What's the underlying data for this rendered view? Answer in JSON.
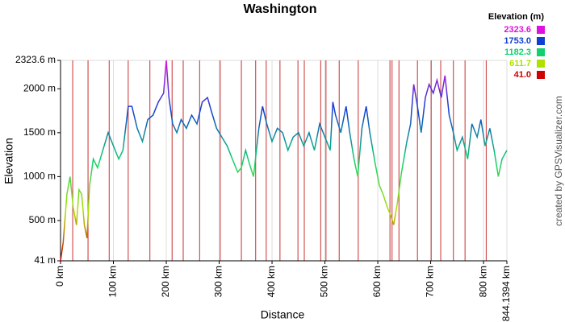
{
  "chart_data": {
    "type": "line",
    "title": "Washington",
    "x_label": "Distance",
    "y_label": "Elevation",
    "credit": "created by GPSVisualizer.com",
    "legend_title": "Elevation (m)",
    "legend": [
      {
        "value": 2323.6,
        "color": "#e010e0"
      },
      {
        "value": 1753,
        "label": "1753.0",
        "color": "#1040d0"
      },
      {
        "value": 1182.3,
        "color": "#10d070"
      },
      {
        "value": 611.7,
        "color": "#b0e000"
      },
      {
        "value": 41,
        "label": "41.0",
        "color": "#d00000"
      }
    ],
    "xlim": [
      0,
      844.1394
    ],
    "ylim": [
      41,
      2323.6
    ],
    "xticks": [
      {
        "value": 0,
        "label": "0 km"
      },
      {
        "value": 100,
        "label": "100 km"
      },
      {
        "value": 200,
        "label": "200 km"
      },
      {
        "value": 300,
        "label": "300 km"
      },
      {
        "value": 400,
        "label": "400 km"
      },
      {
        "value": 500,
        "label": "500 km"
      },
      {
        "value": 600,
        "label": "600 km"
      },
      {
        "value": 700,
        "label": "700 km"
      },
      {
        "value": 800,
        "label": "800 km"
      },
      {
        "value": 844.1394,
        "label": "844.1394 km"
      }
    ],
    "yticks": [
      {
        "value": 41,
        "label": "41 m"
      },
      {
        "value": 500,
        "label": "500 m"
      },
      {
        "value": 1000,
        "label": "1000 m"
      },
      {
        "value": 1500,
        "label": "1500 m"
      },
      {
        "value": 2000,
        "label": "2000 m"
      },
      {
        "value": 2323.6,
        "label": "2323.6 m"
      }
    ],
    "markers": [
      23,
      52,
      92,
      128,
      169,
      211,
      232,
      263,
      302,
      342,
      369,
      389,
      415,
      449,
      461,
      492,
      502,
      527,
      563,
      623,
      627,
      640,
      675,
      701,
      719,
      743,
      765,
      805
    ],
    "marker_color": "#c83030",
    "grid": true,
    "x": [
      0,
      5,
      12,
      18,
      24,
      30,
      35,
      40,
      45,
      50,
      55,
      62,
      70,
      80,
      90,
      100,
      110,
      118,
      128,
      135,
      145,
      155,
      165,
      175,
      185,
      195,
      200,
      205,
      212,
      220,
      228,
      238,
      248,
      258,
      268,
      278,
      285,
      295,
      305,
      315,
      325,
      335,
      342,
      350,
      357,
      365,
      375,
      382,
      390,
      400,
      410,
      420,
      430,
      440,
      450,
      460,
      470,
      480,
      490,
      500,
      510,
      515,
      520,
      530,
      540,
      547,
      555,
      562,
      570,
      578,
      585,
      595,
      603,
      610,
      618,
      625,
      630,
      637,
      645,
      655,
      662,
      668,
      675,
      682,
      690,
      697,
      705,
      712,
      720,
      727,
      735,
      743,
      750,
      760,
      770,
      778,
      788,
      795,
      803,
      812,
      820,
      828,
      835,
      844.1394
    ],
    "values": [
      41,
      250,
      800,
      1000,
      650,
      450,
      850,
      800,
      450,
      300,
      900,
      1200,
      1100,
      1300,
      1500,
      1350,
      1200,
      1300,
      1800,
      1800,
      1550,
      1400,
      1650,
      1700,
      1850,
      1950,
      2323.6,
      1900,
      1600,
      1500,
      1650,
      1550,
      1700,
      1600,
      1850,
      1900,
      1750,
      1550,
      1450,
      1350,
      1200,
      1050,
      1100,
      1300,
      1150,
      1000,
      1550,
      1800,
      1600,
      1400,
      1550,
      1500,
      1300,
      1450,
      1500,
      1350,
      1500,
      1300,
      1600,
      1450,
      1300,
      1850,
      1700,
      1500,
      1800,
      1500,
      1200,
      1000,
      1550,
      1800,
      1500,
      1150,
      900,
      800,
      650,
      550,
      450,
      700,
      1050,
      1400,
      1600,
      2050,
      1800,
      1500,
      1900,
      2050,
      1950,
      2100,
      1900,
      2150,
      1700,
      1500,
      1300,
      1450,
      1200,
      1600,
      1450,
      1650,
      1350,
      1550,
      1300,
      1000,
      1200,
      1300
    ]
  }
}
